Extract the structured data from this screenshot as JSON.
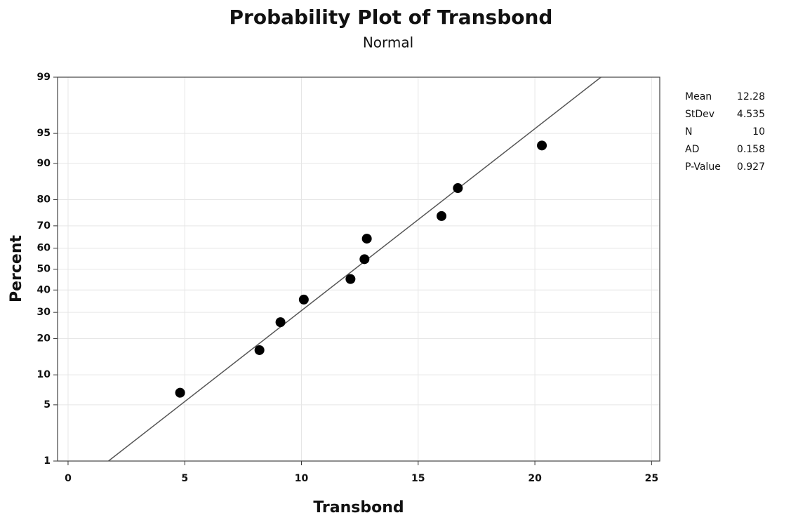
{
  "chart_data": {
    "type": "scatter",
    "title": "Probability Plot of Transbond",
    "subtitle": "Normal",
    "x_label": "Transbond",
    "y_label": "Percent",
    "x": [
      4.8,
      8.2,
      9.1,
      10.1,
      12.1,
      12.7,
      12.8,
      16.0,
      16.7,
      20.3
    ],
    "series": [
      {
        "color": "#000000",
        "values": [
          6.7,
          16.3,
          26.0,
          35.6,
          45.2,
          54.8,
          64.4,
          74.0,
          83.7,
          93.3
        ]
      }
    ],
    "fit_line_color": "#555555",
    "xlim": [
      -0.45,
      25.35
    ],
    "xticks": [
      0,
      5,
      10,
      15,
      20,
      25
    ],
    "ylim": [
      1,
      99
    ],
    "yticks": [
      1,
      5,
      10,
      20,
      30,
      40,
      50,
      60,
      70,
      80,
      90,
      95,
      99
    ],
    "y_scale": "normal-probability",
    "grid": true,
    "stats": [
      {
        "label": "Mean",
        "value": 12.28
      },
      {
        "label": "StDev",
        "value": 4.535
      },
      {
        "label": "N",
        "value": 10
      },
      {
        "label": "AD",
        "value": 0.158
      },
      {
        "label": "P-Value",
        "value": 0.927
      }
    ]
  }
}
